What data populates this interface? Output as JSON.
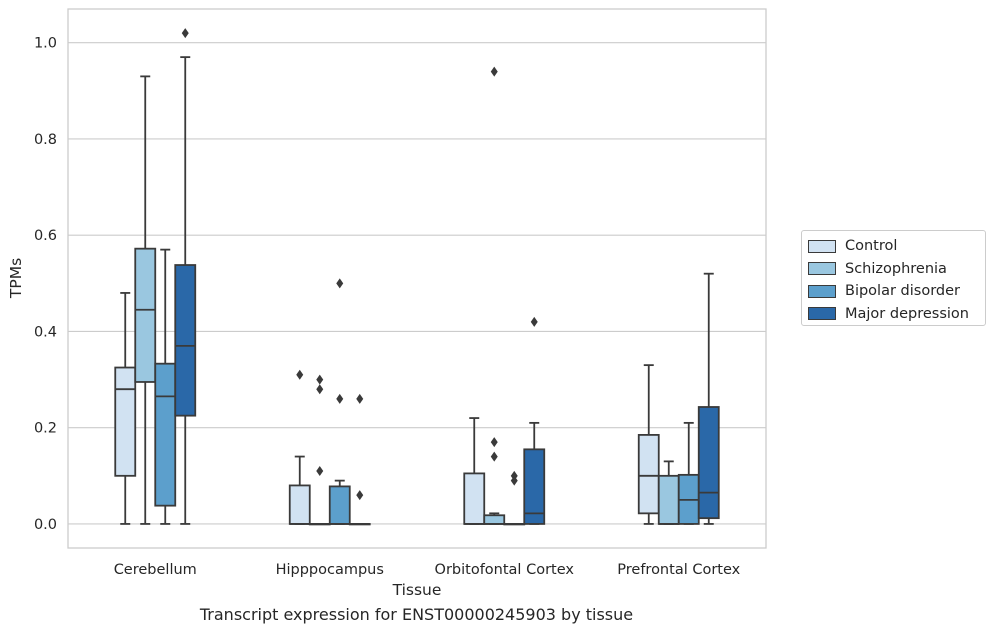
{
  "chart_data": {
    "type": "boxplot",
    "caption": "Transcript expression for ENST00000245903 by tissue",
    "xlabel": "Tissue",
    "ylabel": "TPMs",
    "ylim": [
      -0.05,
      1.07
    ],
    "yticks": [
      0.0,
      0.2,
      0.4,
      0.6,
      0.8,
      1.0
    ],
    "grid": "horizontal",
    "legend_position": "outside-right",
    "categories": [
      "Cerebellum",
      "Hipppocampus",
      "Orbitofontal Cortex",
      "Prefrontal Cortex"
    ],
    "series": [
      {
        "name": "Control",
        "color": "#d1e2f2",
        "boxes": [
          {
            "whislo": 0.0,
            "q1": 0.1,
            "med": 0.28,
            "q3": 0.325,
            "whishi": 0.48,
            "fliers": []
          },
          {
            "whislo": 0.0,
            "q1": 0.0,
            "med": 0.0,
            "q3": 0.08,
            "whishi": 0.14,
            "fliers": [
              0.31
            ]
          },
          {
            "whislo": 0.0,
            "q1": 0.0,
            "med": 0.0,
            "q3": 0.105,
            "whishi": 0.22,
            "fliers": []
          },
          {
            "whislo": 0.0,
            "q1": 0.022,
            "med": 0.1,
            "q3": 0.185,
            "whishi": 0.33,
            "fliers": []
          }
        ]
      },
      {
        "name": "Schizophrenia",
        "color": "#9ac7e0",
        "boxes": [
          {
            "whislo": 0.0,
            "q1": 0.295,
            "med": 0.445,
            "q3": 0.572,
            "whishi": 0.93,
            "fliers": []
          },
          {
            "whislo": 0.0,
            "q1": 0.0,
            "med": 0.0,
            "q3": 0.0,
            "whishi": 0.0,
            "fliers": [
              0.11,
              0.28,
              0.3
            ]
          },
          {
            "whislo": 0.0,
            "q1": 0.0,
            "med": 0.0,
            "q3": 0.018,
            "whishi": 0.022,
            "fliers": [
              0.14,
              0.17,
              0.94
            ]
          },
          {
            "whislo": 0.0,
            "q1": 0.0,
            "med": 0.0,
            "q3": 0.1,
            "whishi": 0.13,
            "fliers": []
          }
        ]
      },
      {
        "name": "Bipolar disorder",
        "color": "#5c9fcc",
        "boxes": [
          {
            "whislo": 0.0,
            "q1": 0.038,
            "med": 0.265,
            "q3": 0.333,
            "whishi": 0.57,
            "fliers": []
          },
          {
            "whislo": 0.0,
            "q1": 0.0,
            "med": 0.0,
            "q3": 0.078,
            "whishi": 0.09,
            "fliers": [
              0.26,
              0.5
            ]
          },
          {
            "whislo": 0.0,
            "q1": 0.0,
            "med": 0.0,
            "q3": 0.0,
            "whishi": 0.0,
            "fliers": [
              0.09,
              0.1
            ]
          },
          {
            "whislo": 0.0,
            "q1": 0.0,
            "med": 0.05,
            "q3": 0.102,
            "whishi": 0.21,
            "fliers": []
          }
        ]
      },
      {
        "name": "Major depression",
        "color": "#2a68a8",
        "boxes": [
          {
            "whislo": 0.0,
            "q1": 0.225,
            "med": 0.37,
            "q3": 0.538,
            "whishi": 0.97,
            "fliers": [
              1.02
            ]
          },
          {
            "whislo": 0.0,
            "q1": 0.0,
            "med": 0.0,
            "q3": 0.0,
            "whishi": 0.0,
            "fliers": [
              0.06,
              0.26
            ]
          },
          {
            "whislo": 0.0,
            "q1": 0.0,
            "med": 0.022,
            "q3": 0.155,
            "whishi": 0.21,
            "fliers": [
              0.42
            ]
          },
          {
            "whislo": 0.0,
            "q1": 0.012,
            "med": 0.065,
            "q3": 0.243,
            "whishi": 0.52,
            "fliers": []
          }
        ]
      }
    ]
  }
}
